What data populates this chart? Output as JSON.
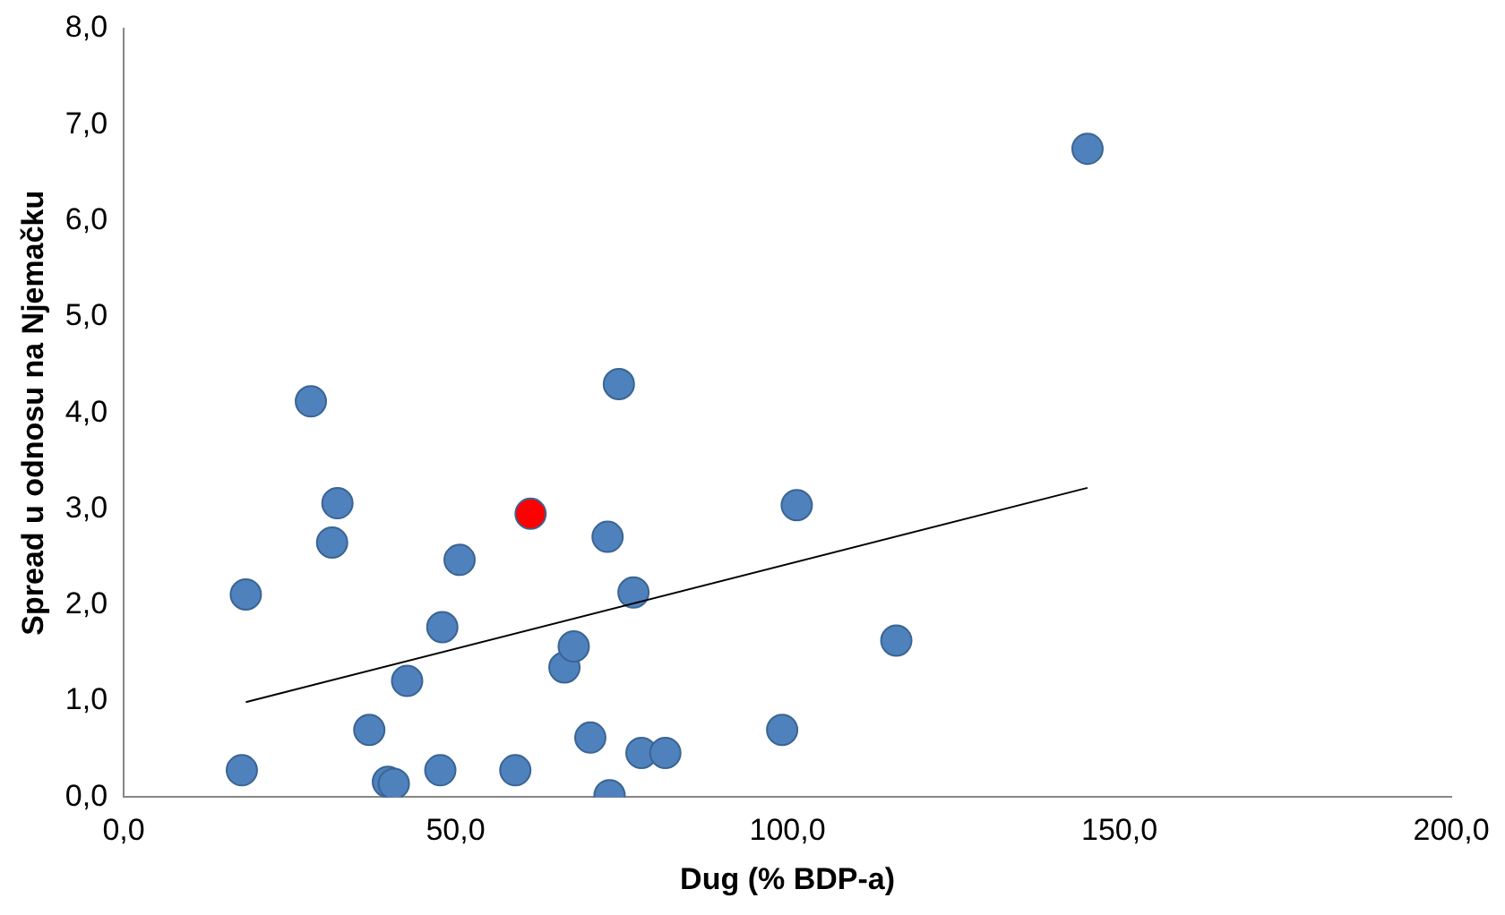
{
  "chart_data": {
    "type": "scatter",
    "xlabel": "Dug (% BDP-a)",
    "ylabel": "Spread u odnosu na Njemačku",
    "marker": "circle",
    "legend": false,
    "grid": false,
    "xlim": [
      0,
      200
    ],
    "xticks": [
      {
        "value": 0,
        "label": "0,0"
      },
      {
        "value": 50,
        "label": "50,0"
      },
      {
        "value": 100,
        "label": "100,0"
      },
      {
        "value": 150,
        "label": "150,0"
      },
      {
        "value": 200,
        "label": "200,0"
      }
    ],
    "ylim": [
      0,
      8
    ],
    "yticks": [
      {
        "value": 0,
        "label": "0,0"
      },
      {
        "value": 1,
        "label": "1,0"
      },
      {
        "value": 2,
        "label": "2,0"
      },
      {
        "value": 3,
        "label": "3,0"
      },
      {
        "value": 4,
        "label": "4,0"
      },
      {
        "value": 5,
        "label": "5,0"
      },
      {
        "value": 6,
        "label": "6,0"
      },
      {
        "value": 7,
        "label": "7,0"
      },
      {
        "value": 8,
        "label": "8,0"
      }
    ],
    "series": [
      {
        "color": "#4f81bd",
        "x": [
          17.8,
          18.4,
          28.2,
          31.4,
          32.2,
          37.0,
          39.8,
          40.7,
          42.7,
          47.7,
          48.0,
          50.6,
          59.0,
          66.4,
          67.8,
          70.3,
          72.9,
          73.2,
          74.6,
          76.8,
          78.0,
          81.6,
          99.2,
          101.4,
          116.4,
          145.2
        ],
        "values": [
          0.28,
          2.11,
          4.12,
          2.65,
          3.06,
          0.7,
          0.16,
          0.14,
          1.21,
          0.28,
          1.77,
          2.47,
          0.28,
          1.35,
          1.57,
          0.62,
          2.71,
          0.02,
          4.3,
          2.13,
          0.46,
          0.46,
          0.7,
          3.04,
          1.63,
          6.75
        ]
      },
      {
        "color": "#ff0000",
        "x": [
          61.3
        ],
        "values": [
          2.95
        ]
      },
      {
        "type": "line",
        "color": "#000000",
        "marker": "none",
        "x": [
          18.4,
          145.2
        ],
        "values": [
          0.99,
          3.22
        ]
      }
    ]
  }
}
